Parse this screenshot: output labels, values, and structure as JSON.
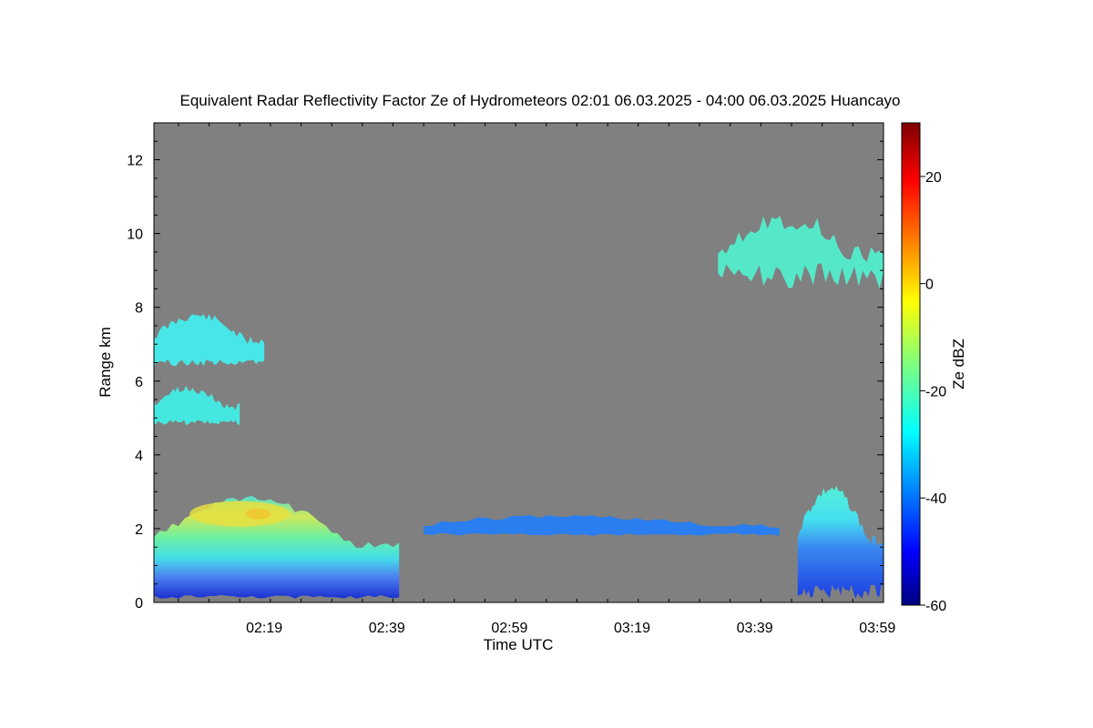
{
  "chart_data": {
    "type": "heatmap",
    "title": "Equivalent Radar Reflectivity Factor Ze of Hydrometeors   02:01 06.03.2025 - 04:00 06.03.2025 Huancayo",
    "xlabel": "Time UTC",
    "ylabel": "Range km",
    "x_range_minutes_utc": [
      121,
      240
    ],
    "x_tick_labels": [
      "02:19",
      "02:39",
      "02:59",
      "03:19",
      "03:39",
      "03:59"
    ],
    "x_tick_values_minutes_utc": [
      139,
      159,
      179,
      199,
      219,
      239
    ],
    "ylim": [
      0,
      13
    ],
    "y_tick_values": [
      0,
      2,
      4,
      6,
      8,
      10,
      12
    ],
    "background_color_no_signal": "#808080",
    "colorbar": {
      "label": "Ze dBZ",
      "range": [
        -60,
        30
      ],
      "tick_values": [
        -60,
        -40,
        -20,
        0,
        20
      ],
      "colormap": "jet"
    },
    "echo_regions": [
      {
        "name": "low-cloud-rain",
        "time_start_min": 121,
        "time_end_min": 161,
        "range_km": [
          0.1,
          2.9
        ],
        "ze_dbz_typical": -20,
        "ze_dbz_max": 2
      },
      {
        "name": "mid-layer-1",
        "time_start_min": 121,
        "time_end_min": 139,
        "range_km": [
          6.4,
          7.9
        ],
        "ze_dbz_typical": -27
      },
      {
        "name": "mid-layer-2",
        "time_start_min": 121,
        "time_end_min": 135,
        "range_km": [
          4.8,
          5.9
        ],
        "ze_dbz_typical": -25
      },
      {
        "name": "thin-layer-2km",
        "time_start_min": 165,
        "time_end_min": 223,
        "range_km": [
          1.8,
          2.4
        ],
        "ze_dbz_typical": -36
      },
      {
        "name": "upper-cirrus",
        "time_start_min": 213,
        "time_end_min": 240,
        "range_km": [
          8.5,
          10.7
        ],
        "ze_dbz_typical": -25
      },
      {
        "name": "low-cloud-end",
        "time_start_min": 226,
        "time_end_min": 240,
        "range_km": [
          0.1,
          3.2
        ],
        "ze_dbz_typical": -28
      }
    ]
  }
}
